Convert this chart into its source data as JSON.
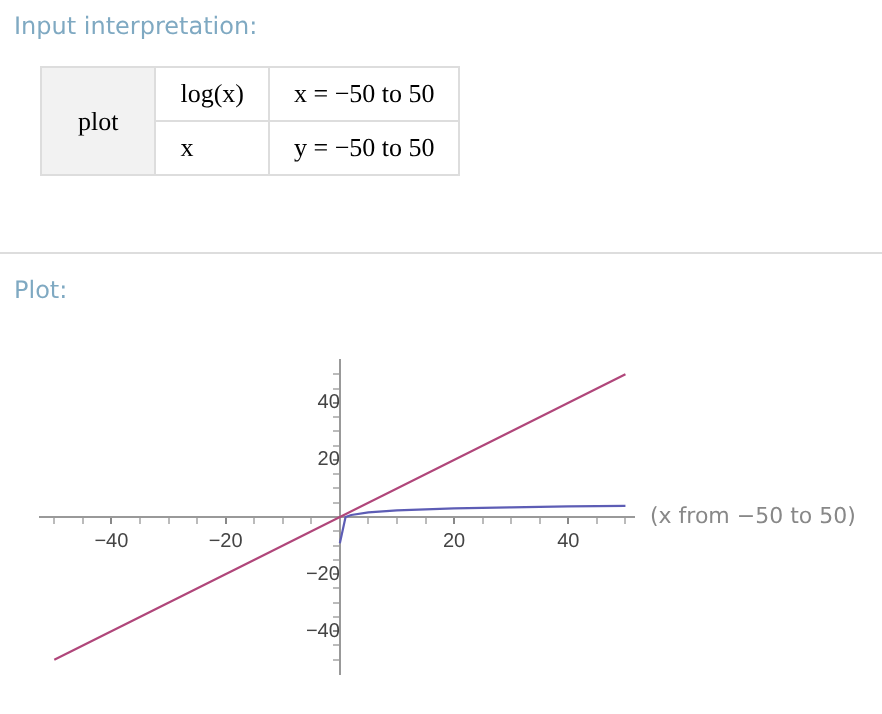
{
  "chart_data": {
    "type": "line",
    "title": "Plot:",
    "xlabel": "(x from −50 to 50)",
    "annotations": [
      "Input interpretation:",
      "plot",
      "log(x)",
      "x = −50 to 50",
      "x",
      "y = −50 to 50"
    ],
    "series": [
      {
        "color": "#5d5db5",
        "x": [
          0.0001,
          1,
          2,
          5,
          10,
          20,
          30,
          40,
          50
        ],
        "values": [
          -9.2,
          0,
          0.7,
          1.6,
          2.3,
          3,
          3.4,
          3.7,
          3.9
        ]
      },
      {
        "color": "#b0467a",
        "x": [
          -50,
          50
        ],
        "values": [
          -50,
          50
        ]
      }
    ],
    "xlim": [
      -52.5,
      51.5
    ],
    "ylim": [
      -55,
      55
    ],
    "xticks": [
      {
        "value": -50,
        "label": null
      },
      {
        "value": -45,
        "label": null
      },
      -40,
      {
        "value": -35,
        "label": null
      },
      {
        "value": -30,
        "label": null
      },
      {
        "value": -25,
        "label": null
      },
      -20,
      {
        "value": -15,
        "label": null
      },
      {
        "value": -10,
        "label": null
      },
      {
        "value": -5,
        "label": null
      },
      {
        "value": 5,
        "label": null
      },
      {
        "value": 10,
        "label": null
      },
      {
        "value": 15,
        "label": null
      },
      20,
      {
        "value": 25,
        "label": null
      },
      {
        "value": 30,
        "label": null
      },
      {
        "value": 35,
        "label": null
      },
      40,
      {
        "value": 45,
        "label": null
      },
      {
        "value": 50,
        "label": null
      }
    ],
    "yticks": [
      {
        "value": -50,
        "label": null
      },
      {
        "value": -45,
        "label": null
      },
      -40,
      {
        "value": -35,
        "label": null
      },
      {
        "value": -30,
        "label": null
      },
      {
        "value": -25,
        "label": null
      },
      -20,
      {
        "value": -15,
        "label": null
      },
      {
        "value": -10,
        "label": null
      },
      {
        "value": -5,
        "label": null
      },
      {
        "value": 5,
        "label": null
      },
      {
        "value": 10,
        "label": null
      },
      {
        "value": 15,
        "label": null
      },
      20,
      {
        "value": 25,
        "label": null
      },
      {
        "value": 30,
        "label": null
      },
      {
        "value": 35,
        "label": null
      },
      40,
      {
        "value": 45,
        "label": null
      },
      {
        "value": 50,
        "label": null
      }
    ],
    "grid": false,
    "legend": false,
    "marker": "none",
    "line_style": "solid"
  }
}
